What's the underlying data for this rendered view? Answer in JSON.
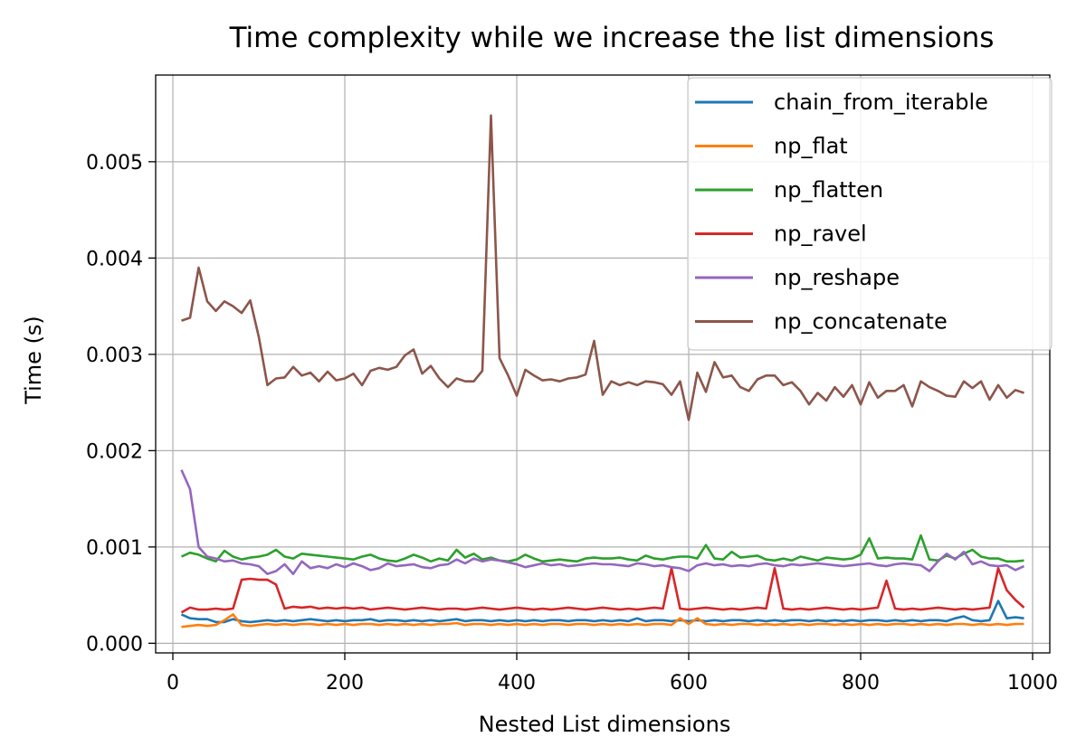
{
  "chart_data": {
    "type": "line",
    "title": "Time complexity while we increase the list dimensions",
    "xlabel": "Nested List dimensions",
    "ylabel": "Time (s)",
    "xlim": [
      -20,
      1020
    ],
    "ylim": [
      -0.0001,
      0.0059
    ],
    "xticks": [
      0,
      200,
      400,
      600,
      800,
      1000
    ],
    "xtick_labels": [
      "0",
      "200",
      "400",
      "600",
      "800",
      "1000"
    ],
    "yticks": [
      0.0,
      0.001,
      0.002,
      0.003,
      0.004,
      0.005
    ],
    "ytick_labels": [
      "0.000",
      "0.001",
      "0.002",
      "0.003",
      "0.004",
      "0.005"
    ],
    "grid": true,
    "legend_position": "top-right",
    "x": [
      10,
      20,
      30,
      40,
      50,
      60,
      70,
      80,
      90,
      100,
      110,
      120,
      130,
      140,
      150,
      160,
      170,
      180,
      190,
      200,
      210,
      220,
      230,
      240,
      250,
      260,
      270,
      280,
      290,
      300,
      310,
      320,
      330,
      340,
      350,
      360,
      370,
      380,
      390,
      400,
      410,
      420,
      430,
      440,
      450,
      460,
      470,
      480,
      490,
      500,
      510,
      520,
      530,
      540,
      550,
      560,
      570,
      580,
      590,
      600,
      610,
      620,
      630,
      640,
      650,
      660,
      670,
      680,
      690,
      700,
      710,
      720,
      730,
      740,
      750,
      760,
      770,
      780,
      790,
      800,
      810,
      820,
      830,
      840,
      850,
      860,
      870,
      880,
      890,
      900,
      910,
      920,
      930,
      940,
      950,
      960,
      970,
      980,
      990
    ],
    "series": [
      {
        "name": "chain_from_iterable",
        "color": "#1f77b4",
        "values": [
          0.0003,
          0.00026,
          0.00025,
          0.00025,
          0.00022,
          0.00022,
          0.00025,
          0.00023,
          0.00022,
          0.00023,
          0.00024,
          0.00023,
          0.00024,
          0.00023,
          0.00024,
          0.00025,
          0.00024,
          0.00023,
          0.00024,
          0.00023,
          0.00024,
          0.00024,
          0.00025,
          0.00023,
          0.00024,
          0.00024,
          0.00023,
          0.00024,
          0.00023,
          0.00024,
          0.00023,
          0.00024,
          0.00025,
          0.00023,
          0.00024,
          0.00024,
          0.00023,
          0.00024,
          0.00023,
          0.00024,
          0.00023,
          0.00024,
          0.00023,
          0.00024,
          0.00024,
          0.00023,
          0.00024,
          0.00024,
          0.00023,
          0.00024,
          0.00023,
          0.00024,
          0.00023,
          0.00026,
          0.00023,
          0.00024,
          0.00024,
          0.00023,
          0.00024,
          0.00023,
          0.00024,
          0.00023,
          0.00024,
          0.00023,
          0.00024,
          0.00024,
          0.00023,
          0.00024,
          0.00023,
          0.00024,
          0.00023,
          0.00024,
          0.00024,
          0.00023,
          0.00024,
          0.00023,
          0.00024,
          0.00023,
          0.00024,
          0.00023,
          0.00024,
          0.00024,
          0.00023,
          0.00024,
          0.00023,
          0.00024,
          0.00023,
          0.00024,
          0.00024,
          0.00023,
          0.00026,
          0.00028,
          0.00024,
          0.00023,
          0.00024,
          0.00044,
          0.00026,
          0.00027,
          0.00026
        ]
      },
      {
        "name": "np_flat",
        "color": "#ff7f0e",
        "values": [
          0.00017,
          0.00018,
          0.00019,
          0.00018,
          0.00019,
          0.00024,
          0.0003,
          0.00019,
          0.00018,
          0.00019,
          0.0002,
          0.00019,
          0.0002,
          0.00019,
          0.0002,
          0.0002,
          0.00019,
          0.0002,
          0.00019,
          0.0002,
          0.00019,
          0.0002,
          0.0002,
          0.00019,
          0.0002,
          0.00019,
          0.0002,
          0.00019,
          0.0002,
          0.00019,
          0.0002,
          0.0002,
          0.00021,
          0.00019,
          0.0002,
          0.0002,
          0.00019,
          0.0002,
          0.00019,
          0.0002,
          0.00019,
          0.0002,
          0.00019,
          0.0002,
          0.0002,
          0.00019,
          0.0002,
          0.0002,
          0.00019,
          0.0002,
          0.00019,
          0.0002,
          0.00019,
          0.0002,
          0.00019,
          0.0002,
          0.0002,
          0.00019,
          0.00026,
          0.0002,
          0.00026,
          0.0002,
          0.00019,
          0.0002,
          0.00019,
          0.0002,
          0.0002,
          0.00019,
          0.0002,
          0.00019,
          0.0002,
          0.00019,
          0.0002,
          0.00019,
          0.0002,
          0.0002,
          0.00019,
          0.0002,
          0.00019,
          0.0002,
          0.00019,
          0.0002,
          0.00019,
          0.0002,
          0.0002,
          0.00019,
          0.0002,
          0.00019,
          0.0002,
          0.00019,
          0.0002,
          0.0002,
          0.00019,
          0.0002,
          0.00019,
          0.0002,
          0.00019,
          0.0002,
          0.0002
        ]
      },
      {
        "name": "np_flatten",
        "color": "#2ca02c",
        "values": [
          0.0009,
          0.00094,
          0.00092,
          0.00088,
          0.00085,
          0.00096,
          0.0009,
          0.00087,
          0.00089,
          0.0009,
          0.00092,
          0.00097,
          0.0009,
          0.00088,
          0.00093,
          0.00092,
          0.00091,
          0.0009,
          0.00089,
          0.00088,
          0.00087,
          0.0009,
          0.00092,
          0.00088,
          0.00086,
          0.00085,
          0.00088,
          0.00092,
          0.00089,
          0.00085,
          0.00088,
          0.00086,
          0.00097,
          0.00089,
          0.00093,
          0.00087,
          0.00089,
          0.00086,
          0.00085,
          0.00087,
          0.00092,
          0.00088,
          0.00085,
          0.00086,
          0.00087,
          0.00086,
          0.00085,
          0.00088,
          0.00089,
          0.00088,
          0.00088,
          0.00089,
          0.00087,
          0.00086,
          0.00091,
          0.00088,
          0.00087,
          0.00089,
          0.0009,
          0.0009,
          0.00088,
          0.00102,
          0.00088,
          0.00087,
          0.00095,
          0.00089,
          0.0009,
          0.00091,
          0.00087,
          0.00086,
          0.00088,
          0.00086,
          0.0009,
          0.00088,
          0.00086,
          0.00089,
          0.00088,
          0.00087,
          0.00088,
          0.00092,
          0.00109,
          0.00088,
          0.00089,
          0.00088,
          0.00088,
          0.00087,
          0.00112,
          0.00087,
          0.00086,
          0.00091,
          0.00088,
          0.00093,
          0.00097,
          0.0009,
          0.00088,
          0.00088,
          0.00085,
          0.00085,
          0.00086
        ]
      },
      {
        "name": "np_ravel",
        "color": "#d62728",
        "values": [
          0.00032,
          0.00037,
          0.00035,
          0.00035,
          0.00036,
          0.00035,
          0.00036,
          0.00066,
          0.00067,
          0.00066,
          0.00066,
          0.00061,
          0.00036,
          0.00038,
          0.00037,
          0.00038,
          0.00036,
          0.00037,
          0.00036,
          0.00037,
          0.00036,
          0.00037,
          0.00035,
          0.00036,
          0.00037,
          0.00036,
          0.00035,
          0.00036,
          0.00037,
          0.00036,
          0.00035,
          0.00036,
          0.00036,
          0.00035,
          0.00036,
          0.00037,
          0.00036,
          0.00035,
          0.00036,
          0.00037,
          0.00036,
          0.00035,
          0.00036,
          0.00035,
          0.00036,
          0.00037,
          0.00036,
          0.00035,
          0.00036,
          0.00037,
          0.00036,
          0.00035,
          0.00036,
          0.00035,
          0.00036,
          0.00037,
          0.00036,
          0.00078,
          0.00036,
          0.00035,
          0.00036,
          0.00037,
          0.00036,
          0.00035,
          0.00036,
          0.00035,
          0.00036,
          0.00037,
          0.00036,
          0.00078,
          0.00036,
          0.00035,
          0.00036,
          0.00035,
          0.00036,
          0.00037,
          0.00036,
          0.00035,
          0.00036,
          0.00035,
          0.00036,
          0.00037,
          0.00065,
          0.00036,
          0.00035,
          0.00036,
          0.00035,
          0.00036,
          0.00037,
          0.00036,
          0.00035,
          0.00036,
          0.00035,
          0.00036,
          0.00037,
          0.00078,
          0.00055,
          0.00045,
          0.00037
        ]
      },
      {
        "name": "np_reshape",
        "color": "#9467bd",
        "values": [
          0.0018,
          0.0016,
          0.001,
          0.0009,
          0.00088,
          0.00085,
          0.00086,
          0.00083,
          0.00082,
          0.0008,
          0.00072,
          0.00075,
          0.00082,
          0.00072,
          0.00085,
          0.00078,
          0.0008,
          0.00078,
          0.00082,
          0.00079,
          0.00083,
          0.0008,
          0.00076,
          0.00078,
          0.00083,
          0.0008,
          0.00081,
          0.00082,
          0.00079,
          0.00078,
          0.00081,
          0.00082,
          0.00087,
          0.00083,
          0.00088,
          0.00085,
          0.00087,
          0.00086,
          0.00084,
          0.00082,
          0.00079,
          0.00081,
          0.00083,
          0.00081,
          0.00082,
          0.0008,
          0.00081,
          0.00082,
          0.00083,
          0.00082,
          0.00082,
          0.00081,
          0.0008,
          0.00083,
          0.00082,
          0.0008,
          0.00081,
          0.00079,
          0.00078,
          0.00075,
          0.00081,
          0.00083,
          0.00081,
          0.00082,
          0.0008,
          0.00081,
          0.0008,
          0.00082,
          0.00083,
          0.00081,
          0.0008,
          0.00082,
          0.00081,
          0.00082,
          0.00083,
          0.00082,
          0.00081,
          0.0008,
          0.00081,
          0.00082,
          0.00083,
          0.00081,
          0.0008,
          0.00082,
          0.00083,
          0.00082,
          0.00081,
          0.00075,
          0.00085,
          0.00093,
          0.00087,
          0.00095,
          0.00082,
          0.00085,
          0.00081,
          0.0008,
          0.00081,
          0.00076,
          0.0008
        ]
      },
      {
        "name": "np_concatenate",
        "color": "#8c564b",
        "values": [
          0.00335,
          0.00338,
          0.0039,
          0.00355,
          0.00345,
          0.00355,
          0.0035,
          0.00343,
          0.00356,
          0.00318,
          0.00268,
          0.00275,
          0.00276,
          0.00287,
          0.00278,
          0.00281,
          0.00272,
          0.00282,
          0.00273,
          0.00275,
          0.0028,
          0.00268,
          0.00283,
          0.00286,
          0.00284,
          0.00287,
          0.00299,
          0.00305,
          0.0028,
          0.00288,
          0.00275,
          0.00266,
          0.00275,
          0.00272,
          0.00272,
          0.00283,
          0.00548,
          0.00296,
          0.00278,
          0.00257,
          0.00284,
          0.00278,
          0.00273,
          0.00274,
          0.00272,
          0.00275,
          0.00276,
          0.00279,
          0.00314,
          0.00258,
          0.00272,
          0.00268,
          0.00271,
          0.00268,
          0.00272,
          0.00271,
          0.00269,
          0.00258,
          0.00272,
          0.00232,
          0.00281,
          0.00261,
          0.00292,
          0.00276,
          0.00278,
          0.00266,
          0.00262,
          0.00274,
          0.00278,
          0.00278,
          0.00268,
          0.00271,
          0.00262,
          0.00248,
          0.0026,
          0.00252,
          0.00266,
          0.00256,
          0.00268,
          0.00248,
          0.00271,
          0.00255,
          0.00262,
          0.00262,
          0.00268,
          0.00246,
          0.00272,
          0.00266,
          0.00262,
          0.00257,
          0.00256,
          0.00272,
          0.00265,
          0.00272,
          0.00253,
          0.00268,
          0.00255,
          0.00263,
          0.0026
        ]
      }
    ]
  }
}
